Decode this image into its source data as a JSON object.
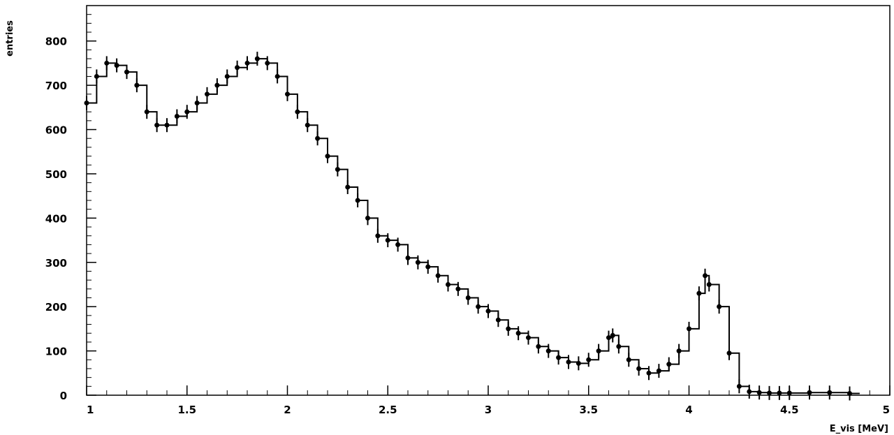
{
  "chart_data": {
    "type": "line",
    "title": "",
    "xlabel": "E_vis [MeV]",
    "ylabel": "entries",
    "xlim": [
      1,
      5
    ],
    "ylim": [
      0,
      880
    ],
    "x_ticks": [
      "1",
      "1.5",
      "2",
      "2.5",
      "3",
      "3.5",
      "4",
      "4.5",
      "5"
    ],
    "y_ticks": [
      "0",
      "100",
      "200",
      "300",
      "400",
      "500",
      "600",
      "700",
      "800"
    ],
    "grid": false,
    "series": [
      {
        "x": [
          1.0,
          1.05,
          1.1,
          1.15,
          1.2,
          1.25,
          1.3,
          1.35,
          1.4,
          1.45,
          1.5,
          1.55,
          1.6,
          1.65,
          1.7,
          1.75,
          1.8,
          1.85,
          1.9,
          1.95,
          2.0,
          2.05,
          2.1,
          2.15,
          2.2,
          2.25,
          2.3,
          2.35,
          2.4,
          2.45,
          2.5,
          2.55,
          2.6,
          2.65,
          2.7,
          2.75,
          2.8,
          2.85,
          2.9,
          2.95,
          3.0,
          3.05,
          3.1,
          3.15,
          3.2,
          3.25,
          3.3,
          3.35,
          3.4,
          3.45,
          3.5,
          3.55,
          3.6,
          3.62,
          3.65,
          3.7,
          3.75,
          3.8,
          3.85,
          3.9,
          3.95,
          4.0,
          4.05,
          4.08,
          4.1,
          4.15,
          4.2,
          4.25,
          4.3,
          4.35,
          4.4,
          4.45,
          4.5,
          4.6,
          4.7,
          4.8
        ],
        "y": [
          660,
          720,
          750,
          745,
          730,
          700,
          640,
          610,
          610,
          630,
          640,
          660,
          680,
          700,
          720,
          740,
          750,
          760,
          750,
          720,
          680,
          640,
          610,
          580,
          540,
          510,
          470,
          440,
          400,
          360,
          350,
          340,
          310,
          300,
          290,
          270,
          250,
          240,
          220,
          200,
          190,
          170,
          150,
          140,
          130,
          110,
          100,
          85,
          75,
          72,
          80,
          100,
          130,
          135,
          110,
          80,
          60,
          50,
          55,
          70,
          100,
          150,
          230,
          270,
          250,
          200,
          95,
          20,
          8,
          6,
          5,
          5,
          5,
          6,
          6,
          4
        ]
      }
    ]
  }
}
